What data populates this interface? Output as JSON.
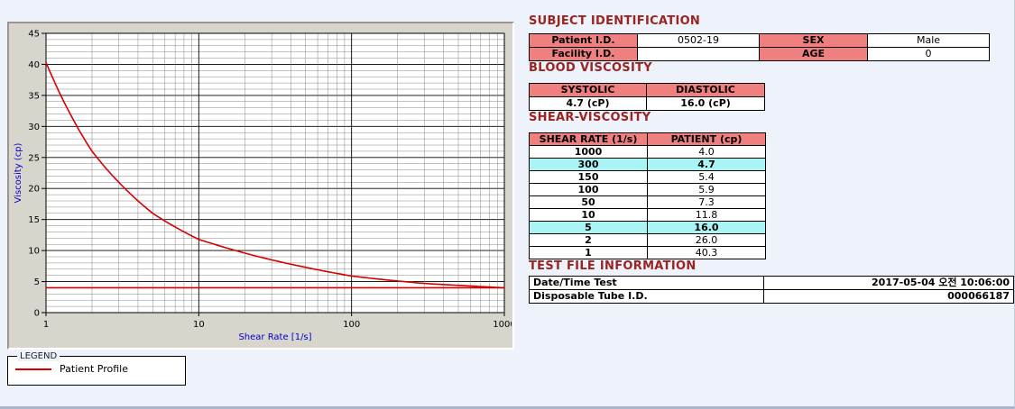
{
  "legend": {
    "title": "LEGEND",
    "series": "Patient Profile"
  },
  "chart_data": {
    "type": "line",
    "title": "",
    "xlabel": "Shear Rate [1/s]",
    "ylabel": "Viscosity (cp)",
    "x_scale": "log",
    "xlim": [
      1,
      1000
    ],
    "ylim": [
      0,
      45
    ],
    "x_ticks": [
      1,
      10,
      100,
      1000
    ],
    "y_ticks": [
      0,
      5,
      10,
      15,
      20,
      25,
      30,
      35,
      40,
      45
    ],
    "grid": {
      "on": true,
      "h_minor_step": 1,
      "h_major_step": 5,
      "v_log_minor": true
    },
    "legend_position": "below-left",
    "series": [
      {
        "name": "Patient Profile",
        "color": "#d40000",
        "x": [
          1,
          2,
          5,
          10,
          50,
          100,
          150,
          300,
          1000
        ],
        "y": [
          40.3,
          26.0,
          16.0,
          11.8,
          7.3,
          5.9,
          5.4,
          4.7,
          4.0
        ]
      }
    ],
    "reference_line_y": 4.0
  },
  "sections": {
    "subject": {
      "title": "SUBJECT IDENTIFICATION",
      "rows": [
        {
          "label1": "Patient I.D.",
          "value1": "0502-19",
          "label2": "SEX",
          "value2": "Male"
        },
        {
          "label1": "Facility I.D.",
          "value1": "",
          "label2": "AGE",
          "value2": "0"
        }
      ]
    },
    "blood": {
      "title": "BLOOD VISCOSITY",
      "headers": [
        "SYSTOLIC",
        "DIASTOLIC"
      ],
      "values": [
        "4.7 (cP)",
        "16.0 (cP)"
      ]
    },
    "shear": {
      "title": "SHEAR-VISCOSITY",
      "headers": [
        "SHEAR RATE (1/s)",
        "PATIENT (cp)"
      ],
      "highlight_color": "#a9f5f5",
      "rows": [
        {
          "rate": "1000",
          "value": "4.0",
          "highlight": false
        },
        {
          "rate": "300",
          "value": "4.7",
          "highlight": true
        },
        {
          "rate": "150",
          "value": "5.4",
          "highlight": false
        },
        {
          "rate": "100",
          "value": "5.9",
          "highlight": false
        },
        {
          "rate": "50",
          "value": "7.3",
          "highlight": false
        },
        {
          "rate": "10",
          "value": "11.8",
          "highlight": false
        },
        {
          "rate": "5",
          "value": "16.0",
          "highlight": true
        },
        {
          "rate": "2",
          "value": "26.0",
          "highlight": false
        },
        {
          "rate": "1",
          "value": "40.3",
          "highlight": false
        }
      ]
    },
    "testfile": {
      "title": "TEST FILE INFORMATION",
      "rows": [
        {
          "label": "Date/Time Test",
          "value": "2017-05-04  오전 10:06:00"
        },
        {
          "label": "Disposable Tube I.D.",
          "value": "000066187"
        }
      ]
    }
  },
  "colors": {
    "header_fill": "#f08080",
    "highlight_fill": "#a9f5f5",
    "section_title": "#9b2420",
    "series_red": "#d40000",
    "axis_label_blue": "#0000cc",
    "page_background": "#eef2fb"
  }
}
